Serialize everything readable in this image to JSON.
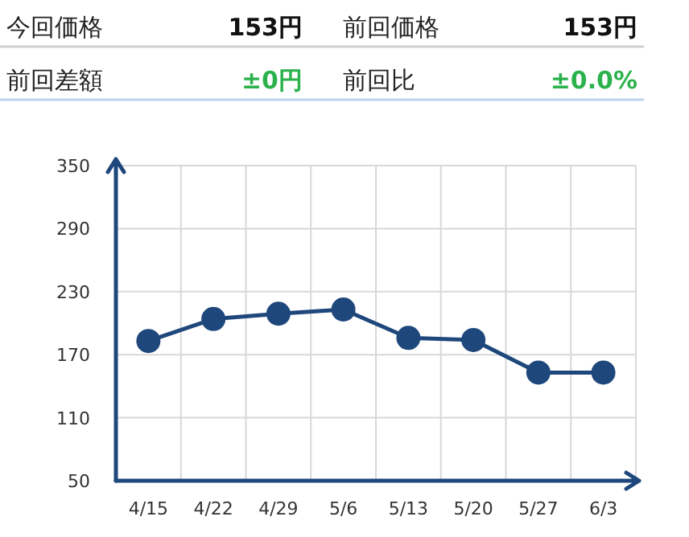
{
  "chart_data": [
    {
      "type": "other",
      "annotations": [
        "今回価格",
        "153円",
        "前回価格",
        "153円",
        "前回差額",
        "±0円",
        "前回比",
        "±0.0%"
      ]
    },
    {
      "type": "line",
      "categories": [
        "4/15",
        "4/22",
        "4/29",
        "5/6",
        "5/13",
        "5/20",
        "5/27",
        "6/3"
      ],
      "series": [
        {
          "color": "#1e477c",
          "values": [
            183,
            204,
            209,
            213,
            186,
            184,
            153,
            153
          ]
        }
      ],
      "ylim": [
        50,
        350
      ],
      "yticks": [
        50,
        110,
        170,
        230,
        290,
        350
      ],
      "grid": true,
      "marker": "circle"
    }
  ]
}
